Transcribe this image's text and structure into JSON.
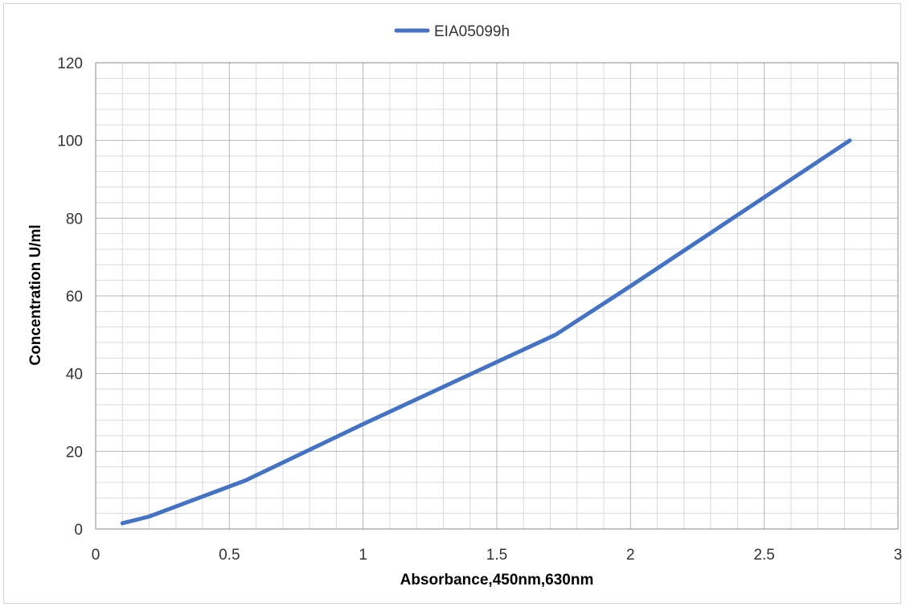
{
  "chart_data": {
    "type": "line",
    "title": "",
    "xlabel": "Absorbance,450nm,630nm",
    "ylabel": "Concentration U/ml",
    "xlim": [
      0,
      3
    ],
    "ylim": [
      0,
      120
    ],
    "x_ticks": [
      "0",
      "0.5",
      "1",
      "1.5",
      "2",
      "2.5",
      "3"
    ],
    "y_ticks": [
      "0",
      "20",
      "40",
      "60",
      "80",
      "100",
      "120"
    ],
    "grid": true,
    "legend_position": "top-center",
    "series": [
      {
        "name": "EIA05099h",
        "color": "#4472C4",
        "x": [
          0.1,
          0.2,
          0.56,
          1.0,
          1.72,
          2.0,
          2.82
        ],
        "y": [
          1.5,
          3.2,
          12.5,
          27,
          50,
          62.5,
          100
        ]
      }
    ]
  }
}
